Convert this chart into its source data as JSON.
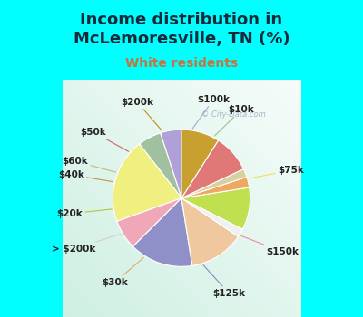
{
  "title": "Income distribution in\nMcLemoresville, TN (%)",
  "subtitle": "White residents",
  "background_top": "#00FFFF",
  "labels": [
    "$100k",
    "$10k",
    "$75k",
    "$150k",
    "$125k",
    "$30k",
    "> $200k",
    "$20k",
    "$40k",
    "$60k",
    "$50k",
    "$200k"
  ],
  "sizes": [
    5.0,
    5.5,
    20.0,
    7.0,
    15.0,
    13.0,
    2.0,
    10.0,
    2.5,
    2.0,
    9.0,
    9.0
  ],
  "colors": [
    "#b0a0d8",
    "#a0c0a0",
    "#f0f080",
    "#f0a8b8",
    "#9090c8",
    "#f0c8a0",
    "#f0f0f0",
    "#c0e050",
    "#f0a860",
    "#d8d0a0",
    "#e07878",
    "#c8a030"
  ],
  "line_colors": [
    "#b0a0d8",
    "#a0c090",
    "#e8e060",
    "#e89098",
    "#8888c0",
    "#e0a870",
    "#d0d0d0",
    "#b0c840",
    "#d09050",
    "#c8b878",
    "#d06868",
    "#b89020"
  ],
  "startangle": 90,
  "wedge_linewidth": 0.8,
  "wedge_edgecolor": "#ffffff",
  "title_color": "#1a2a3a",
  "subtitle_color": "#c07840",
  "title_fontsize": 13,
  "subtitle_fontsize": 10,
  "label_fontsize": 7.5
}
